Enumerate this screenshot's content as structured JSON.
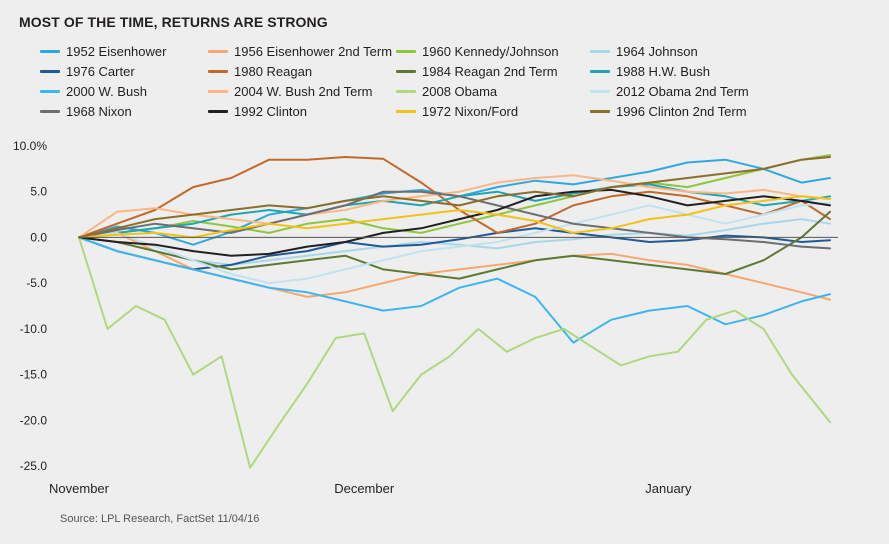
{
  "title": "MOST OF THE TIME, RETURNS ARE STRONG",
  "source": "Source: LPL Research, FactSet   11/04/16",
  "chart_data": {
    "type": "line",
    "title": "MOST OF THE TIME, RETURNS ARE STRONG",
    "xlabel": "",
    "ylabel": "",
    "x_tick_labels": [
      "November",
      "December",
      "January"
    ],
    "x_tick_positions": [
      0,
      30,
      62
    ],
    "x_range": [
      0,
      79
    ],
    "ylim": [
      -25,
      10
    ],
    "y_ticks": [
      10,
      5,
      0,
      -5,
      -10,
      -15,
      -20,
      -25
    ],
    "y_tick_labels": [
      "10.0%",
      "5.0",
      "0.0",
      "-5.0",
      "-10.0",
      "-15.0",
      "-20.0",
      "-25.0"
    ],
    "grid": false,
    "legend_position": "top",
    "series": [
      {
        "name": "1952 Eisenhower",
        "color": "#2ea9df",
        "x": [
          0,
          4,
          8,
          12,
          16,
          20,
          24,
          28,
          32,
          36,
          40,
          44,
          48,
          52,
          56,
          60,
          64,
          68,
          72,
          76,
          79
        ],
        "values": [
          0,
          1.2,
          0.5,
          -0.8,
          0.6,
          2.5,
          3.2,
          4.0,
          4.8,
          5.2,
          4.5,
          5.5,
          6.2,
          5.8,
          6.5,
          7.2,
          8.2,
          8.5,
          7.5,
          6.0,
          6.5
        ]
      },
      {
        "name": "1956 Eisenhower 2nd Term",
        "color": "#f6a870",
        "x": [
          0,
          4,
          8,
          12,
          16,
          20,
          24,
          28,
          32,
          36,
          40,
          44,
          48,
          52,
          56,
          60,
          64,
          68,
          72,
          76,
          79
        ],
        "values": [
          0,
          0.5,
          -1.5,
          -3.5,
          -4.5,
          -5.5,
          -6.5,
          -6.0,
          -5.0,
          -4.0,
          -3.5,
          -3.0,
          -2.5,
          -2.0,
          -1.8,
          -2.5,
          -3.0,
          -4.0,
          -5.0,
          -6.0,
          -6.8
        ]
      },
      {
        "name": "1960 Kennedy/Johnson",
        "color": "#8dc63f",
        "x": [
          0,
          4,
          8,
          12,
          16,
          20,
          24,
          28,
          32,
          36,
          40,
          44,
          48,
          52,
          56,
          60,
          64,
          68,
          72,
          76,
          79
        ],
        "values": [
          0,
          0.5,
          1.0,
          1.8,
          1.2,
          0.5,
          1.5,
          2.0,
          1.0,
          0.5,
          1.5,
          2.5,
          3.5,
          4.5,
          5.5,
          6.0,
          5.5,
          6.5,
          7.5,
          8.5,
          9.0
        ]
      },
      {
        "name": "1964 Johnson",
        "color": "#a8d8e8",
        "x": [
          0,
          4,
          8,
          12,
          16,
          20,
          24,
          28,
          32,
          36,
          40,
          44,
          48,
          52,
          56,
          60,
          64,
          68,
          72,
          76,
          79
        ],
        "values": [
          0,
          -0.5,
          -1.5,
          -2.5,
          -3.0,
          -2.5,
          -2.0,
          -1.5,
          -1.0,
          -0.5,
          -0.8,
          -1.2,
          -0.5,
          -0.2,
          0.3,
          0.5,
          0.2,
          0.8,
          1.5,
          2.0,
          1.5
        ]
      },
      {
        "name": "1976 Carter",
        "color": "#1f5a96",
        "x": [
          0,
          4,
          8,
          12,
          16,
          20,
          24,
          28,
          32,
          36,
          40,
          44,
          48,
          52,
          56,
          60,
          64,
          68,
          72,
          76,
          79
        ],
        "values": [
          0,
          -1.5,
          -2.5,
          -3.5,
          -3.0,
          -2.0,
          -1.5,
          -0.5,
          -1.0,
          -0.8,
          -0.2,
          0.5,
          1.0,
          0.5,
          0.0,
          -0.5,
          -0.3,
          0.2,
          0.0,
          -0.5,
          -0.3
        ]
      },
      {
        "name": "1980 Reagan",
        "color": "#c2692c",
        "x": [
          0,
          4,
          8,
          12,
          16,
          20,
          24,
          28,
          32,
          36,
          40,
          44,
          48,
          52,
          56,
          60,
          64,
          68,
          72,
          76,
          79
        ],
        "values": [
          0,
          1.5,
          3.0,
          5.5,
          6.5,
          8.5,
          8.5,
          8.8,
          8.6,
          6.0,
          3.0,
          0.5,
          1.5,
          3.5,
          4.5,
          5.0,
          4.5,
          3.5,
          2.5,
          4.0,
          2.0
        ]
      },
      {
        "name": "1984 Reagan 2nd Term",
        "color": "#5d7a34",
        "x": [
          0,
          4,
          8,
          12,
          16,
          20,
          24,
          28,
          32,
          36,
          40,
          44,
          48,
          52,
          56,
          60,
          64,
          68,
          72,
          76,
          79
        ],
        "values": [
          0,
          -0.5,
          -1.5,
          -2.5,
          -3.5,
          -3.0,
          -2.5,
          -2.0,
          -3.5,
          -4.0,
          -4.5,
          -3.5,
          -2.5,
          -2.0,
          -2.5,
          -3.0,
          -3.5,
          -4.0,
          -2.5,
          0.0,
          2.8
        ]
      },
      {
        "name": "1988 H.W. Bush",
        "color": "#1fa6b2",
        "x": [
          0,
          4,
          8,
          12,
          16,
          20,
          24,
          28,
          32,
          36,
          40,
          44,
          48,
          52,
          56,
          60,
          64,
          68,
          72,
          76,
          79
        ],
        "values": [
          0,
          0.5,
          1.0,
          1.5,
          2.5,
          3.0,
          2.5,
          3.5,
          4.0,
          3.5,
          4.5,
          5.0,
          4.0,
          4.8,
          5.5,
          5.8,
          5.0,
          4.5,
          3.5,
          4.0,
          4.5
        ]
      },
      {
        "name": "2000 W. Bush",
        "color": "#3fb5ee",
        "x": [
          0,
          4,
          8,
          12,
          16,
          20,
          24,
          28,
          32,
          36,
          40,
          44,
          48,
          52,
          56,
          60,
          64,
          68,
          72,
          76,
          79
        ],
        "values": [
          0,
          -1.5,
          -2.5,
          -3.5,
          -4.5,
          -5.5,
          -6.0,
          -7.0,
          -8.0,
          -7.5,
          -5.5,
          -4.5,
          -6.5,
          -11.5,
          -9.0,
          -8.0,
          -7.5,
          -9.5,
          -8.5,
          -7.0,
          -6.2
        ]
      },
      {
        "name": "2004 W. Bush 2nd Term",
        "color": "#fbb683",
        "x": [
          0,
          4,
          8,
          12,
          16,
          20,
          24,
          28,
          32,
          36,
          40,
          44,
          48,
          52,
          56,
          60,
          64,
          68,
          72,
          76,
          79
        ],
        "values": [
          0,
          2.8,
          3.2,
          2.5,
          2.0,
          1.5,
          2.5,
          3.0,
          4.0,
          4.5,
          5.0,
          6.0,
          6.5,
          6.8,
          6.2,
          5.5,
          5.0,
          4.8,
          5.2,
          4.5,
          4.2
        ]
      },
      {
        "name": "2008 Obama",
        "color": "#b1d77f",
        "x": [
          0,
          3,
          6,
          9,
          12,
          15,
          18,
          21,
          24,
          27,
          30,
          33,
          36,
          39,
          42,
          45,
          48,
          51,
          54,
          57,
          60,
          63,
          66,
          69,
          72,
          75,
          79
        ],
        "values": [
          0,
          -10.0,
          -7.5,
          -9.0,
          -15.0,
          -13.0,
          -25.2,
          -20.5,
          -16.0,
          -11.0,
          -10.5,
          -19.0,
          -15.0,
          -13.0,
          -10.0,
          -12.5,
          -11.0,
          -10.0,
          -12.0,
          -14.0,
          -13.0,
          -12.5,
          -9.0,
          -8.0,
          -10.0,
          -15.0,
          -20.2
        ]
      },
      {
        "name": "2012 Obama 2nd Term",
        "color": "#bfe3ef",
        "x": [
          0,
          4,
          8,
          12,
          16,
          20,
          24,
          28,
          32,
          36,
          40,
          44,
          48,
          52,
          56,
          60,
          64,
          68,
          72,
          76,
          79
        ],
        "values": [
          0,
          0.5,
          -1.0,
          -2.5,
          -4.0,
          -5.0,
          -4.5,
          -3.5,
          -2.5,
          -1.5,
          -1.0,
          -0.5,
          0.5,
          1.5,
          2.5,
          3.5,
          2.5,
          1.5,
          2.5,
          3.5,
          3.8
        ]
      },
      {
        "name": "1968 Nixon",
        "color": "#6d6e71",
        "x": [
          0,
          4,
          8,
          12,
          16,
          20,
          24,
          28,
          32,
          36,
          40,
          44,
          48,
          52,
          56,
          60,
          64,
          68,
          72,
          76,
          79
        ],
        "values": [
          0,
          0.8,
          1.5,
          1.0,
          0.5,
          1.5,
          2.5,
          3.5,
          5.0,
          5.0,
          4.5,
          3.5,
          2.5,
          1.5,
          1.0,
          0.5,
          0.0,
          -0.2,
          -0.5,
          -1.0,
          -1.2
        ]
      },
      {
        "name": "1992 Clinton",
        "color": "#231f20",
        "x": [
          0,
          4,
          8,
          12,
          16,
          20,
          24,
          28,
          32,
          36,
          40,
          44,
          48,
          52,
          56,
          60,
          64,
          68,
          72,
          76,
          79
        ],
        "values": [
          0,
          -0.5,
          -0.8,
          -1.5,
          -2.0,
          -1.8,
          -1.0,
          -0.5,
          0.5,
          1.0,
          2.0,
          3.0,
          4.5,
          5.0,
          5.2,
          4.5,
          3.5,
          4.0,
          4.5,
          4.0,
          3.5
        ]
      },
      {
        "name": "1972 Nixon/Ford",
        "color": "#f2c21a",
        "x": [
          0,
          4,
          8,
          12,
          16,
          20,
          24,
          28,
          32,
          36,
          40,
          44,
          48,
          52,
          56,
          60,
          64,
          68,
          72,
          76,
          79
        ],
        "values": [
          0,
          0.3,
          0.5,
          0.0,
          0.8,
          1.5,
          1.0,
          1.5,
          2.0,
          2.5,
          3.0,
          2.5,
          1.8,
          0.5,
          1.0,
          2.0,
          2.5,
          3.5,
          4.0,
          4.5,
          4.2
        ]
      },
      {
        "name": "1996 Clinton 2nd Term",
        "color": "#8b6e2a",
        "x": [
          0,
          4,
          8,
          12,
          16,
          20,
          24,
          28,
          32,
          36,
          40,
          44,
          48,
          52,
          56,
          60,
          64,
          68,
          72,
          76,
          79
        ],
        "values": [
          0,
          1.0,
          2.0,
          2.5,
          3.0,
          3.5,
          3.2,
          4.0,
          4.5,
          4.0,
          3.5,
          4.5,
          5.0,
          4.5,
          5.5,
          6.0,
          6.5,
          7.0,
          7.5,
          8.5,
          8.8
        ]
      }
    ]
  }
}
